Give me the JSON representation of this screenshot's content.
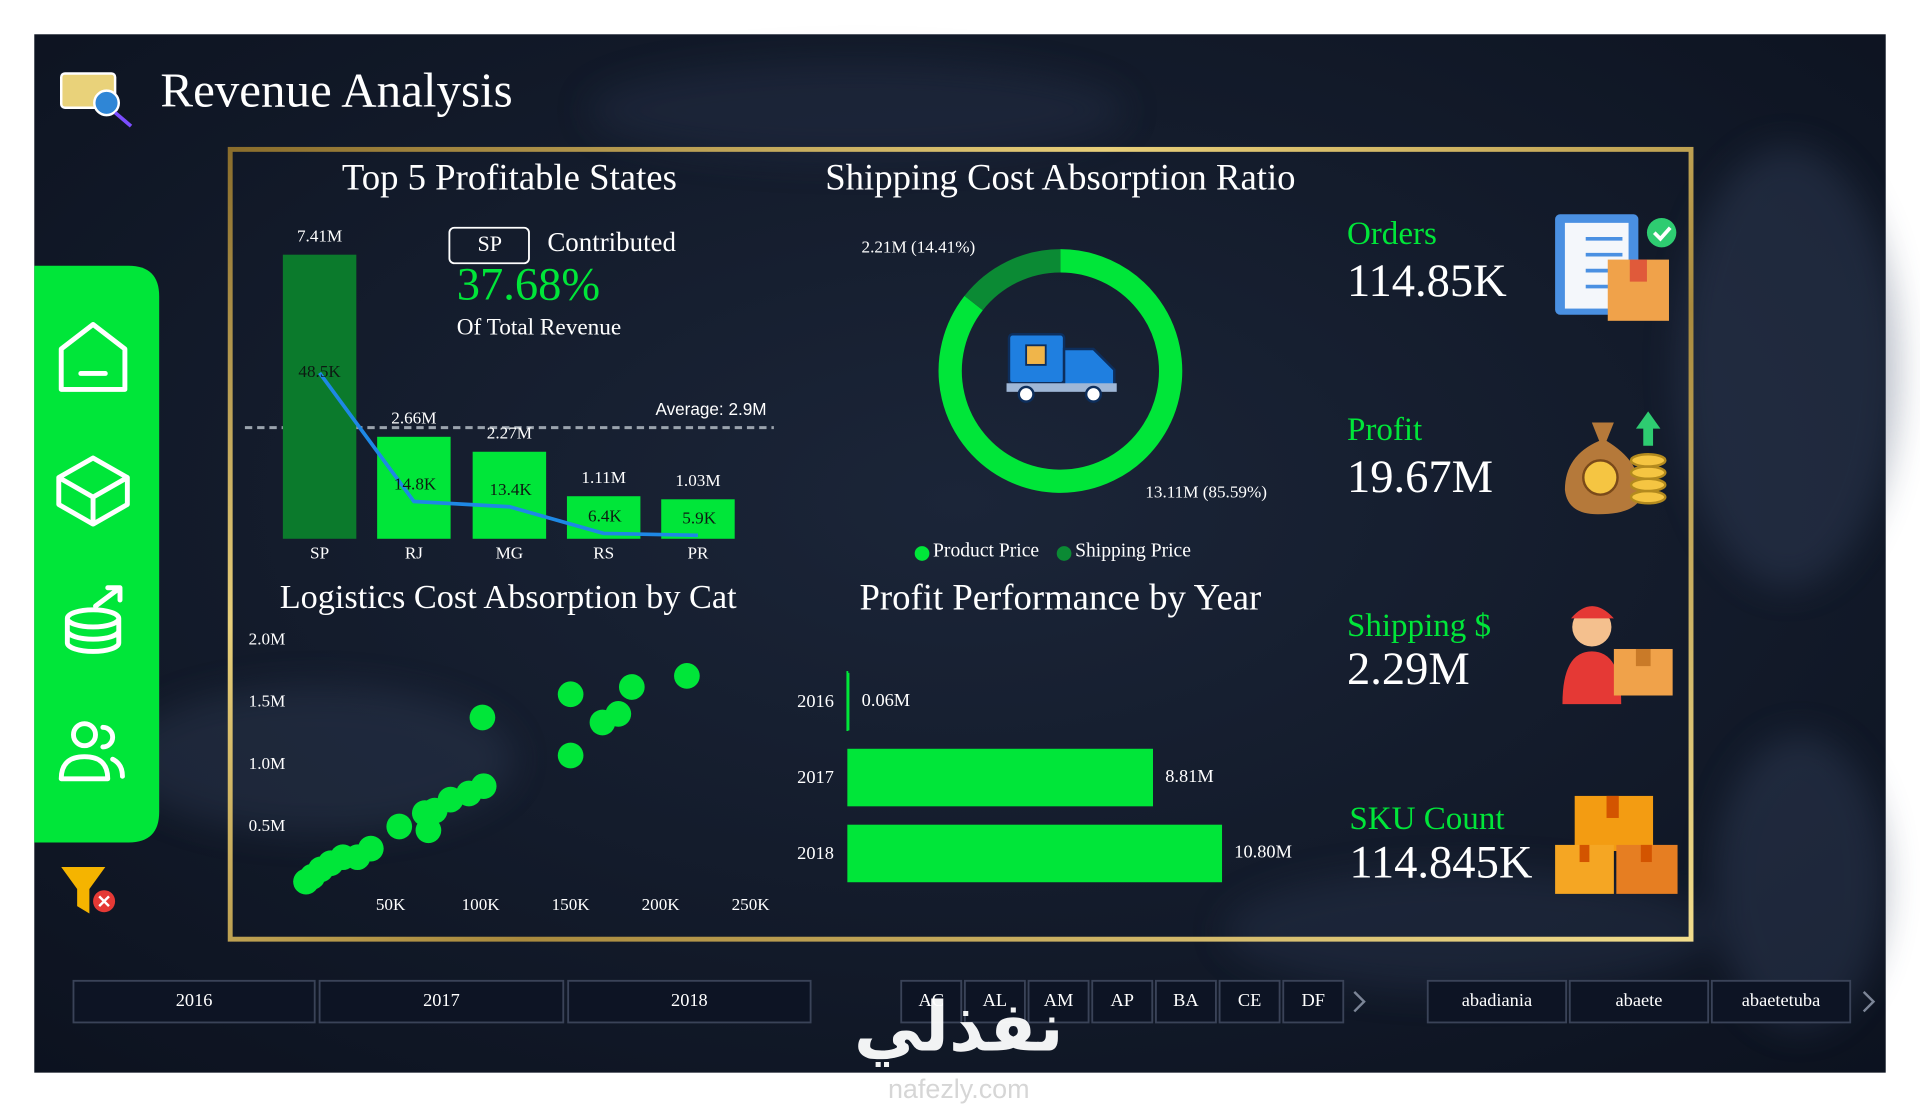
{
  "header": {
    "title": "Revenue Analysis"
  },
  "chart_data": [
    {
      "type": "bar",
      "title": "Top 5 Profitable States",
      "categories": [
        "SP",
        "RJ",
        "MG",
        "RS",
        "PR"
      ],
      "series": [
        {
          "values": [
            7410000,
            2660000,
            2270000,
            1110000,
            1030000
          ],
          "value_labels": [
            "7.41M",
            "2.66M",
            "2.27M",
            "1.11M",
            "1.03M"
          ],
          "colors": [
            "#0b7a2c",
            "#00e639",
            "#00e639",
            "#00e639",
            "#00e639"
          ]
        },
        {
          "type": "line",
          "axis": "y2",
          "color": "#1e88e5",
          "values": [
            48500,
            14800,
            13400,
            6400,
            5900
          ],
          "value_labels": [
            "48.5K",
            "14.8K",
            "13.4K",
            "6.4K",
            "5.9K"
          ]
        }
      ],
      "y2lim": [
        5000,
        79500
      ],
      "average": {
        "value": 2900000,
        "label": "Average: 2.9M"
      },
      "callout": {
        "state": "SP",
        "text": "Contributed",
        "share": "37.68%",
        "note": "Of Total Revenue"
      }
    },
    {
      "type": "donut",
      "title": "Shipping Cost Absorption Ratio",
      "categories": [
        "Product Price",
        "Shipping Price"
      ],
      "values": [
        13110000,
        2210000
      ],
      "value_labels": [
        "13.11M (85.59%)",
        "2.21M (14.41%)"
      ],
      "colors": [
        "#00e639",
        "#0b8a34"
      ],
      "legend": "bottom"
    },
    {
      "type": "scatter",
      "title": "Logistics Cost Absorption by Cat",
      "color": "#00e639",
      "x": [
        214600,
        184000,
        150000,
        101000,
        176500,
        167700,
        150000,
        101700,
        93500,
        83300,
        74500,
        69000,
        71000,
        54800,
        39000,
        31600,
        23500,
        16700,
        11200,
        6500,
        3000
      ],
      "values": [
        1716000,
        1627000,
        1568000,
        1381000,
        1410000,
        1341000,
        1075000,
        828000,
        769000,
        720000,
        631000,
        611000,
        473000,
        503000,
        325000,
        256000,
        256000,
        207000,
        158000,
        99000,
        59000
      ],
      "xlim": [
        0,
        260000
      ],
      "ylim": [
        0,
        2100000
      ],
      "xticks": [
        {
          "value": 50000,
          "label": "50K"
        },
        {
          "value": 100000,
          "label": "100K"
        },
        {
          "value": 150000,
          "label": "150K"
        },
        {
          "value": 200000,
          "label": "200K"
        },
        {
          "value": 250000,
          "label": "250K"
        }
      ],
      "yticks": [
        {
          "value": 500000,
          "label": "0.5M"
        },
        {
          "value": 1000000,
          "label": "1.0M"
        },
        {
          "value": 1500000,
          "label": "1.5M"
        },
        {
          "value": 2000000,
          "label": "2.0M"
        }
      ],
      "grid": false
    },
    {
      "type": "hbar",
      "title": "Profit Performance by Year",
      "categories": [
        "2016",
        "2017",
        "2018"
      ],
      "values": [
        60000,
        8810000,
        10800000
      ],
      "value_labels": [
        "0.06M",
        "8.81M",
        "10.80M"
      ],
      "color": "#00e639"
    }
  ],
  "kpis": [
    {
      "label": "Orders",
      "value": "114.85K"
    },
    {
      "label": "Profit",
      "value": "19.67M"
    },
    {
      "label": "Shipping $",
      "value": "2.29M"
    },
    {
      "label": "SKU Count",
      "value": "114.845K"
    }
  ],
  "slicers": {
    "years": [
      "2016",
      "2017",
      "2018"
    ],
    "states": [
      "AC",
      "AL",
      "AM",
      "AP",
      "BA",
      "CE",
      "DF"
    ],
    "cities": [
      "abadiania",
      "abaete",
      "abaetetuba"
    ]
  },
  "watermark": {
    "text": "نفذلي",
    "url": "nafezly.com"
  }
}
